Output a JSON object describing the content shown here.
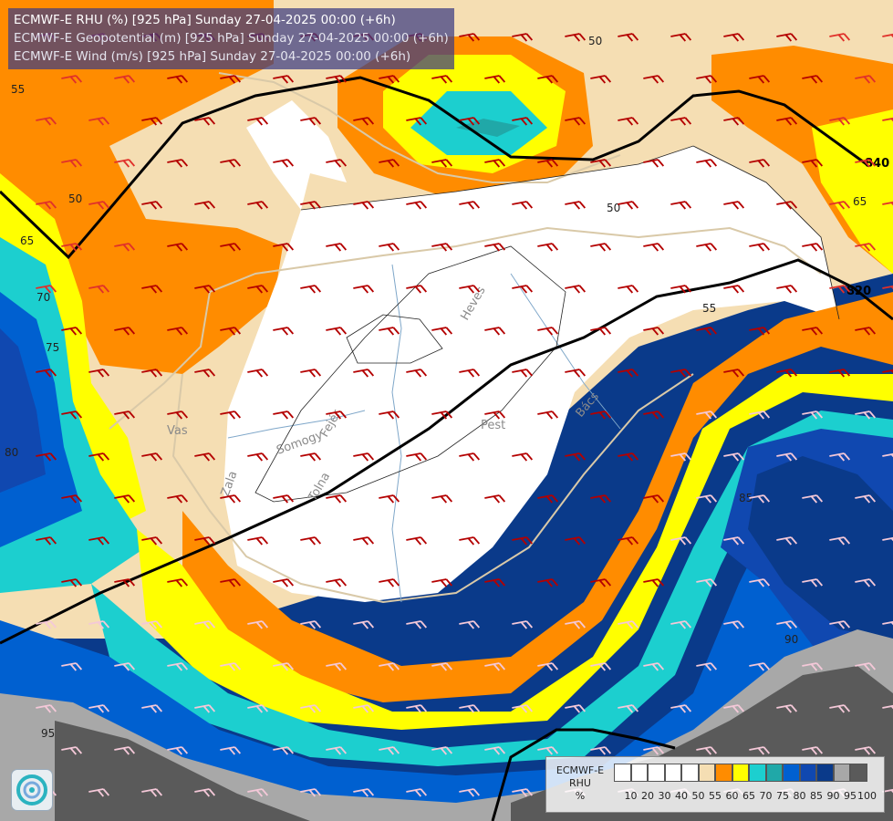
{
  "header": {
    "line1": "ECMWF-E RHU (%) [925 hPa] Sunday 27-04-2025 00:00 (+6h)",
    "line2": "ECMWF-E Geopotential (m) [925 hPa] Sunday 27-04-2025 00:00 (+6h)",
    "line3": "ECMWF-E Wind (m/s) [925 hPa] Sunday 27-04-2025 00:00 (+6h)"
  },
  "legend": {
    "model": "ECMWF-E",
    "variable": "RHU",
    "unit": "%",
    "levels": [
      "10",
      "20",
      "30",
      "40",
      "50",
      "55",
      "60",
      "65",
      "70",
      "75",
      "80",
      "85",
      "90",
      "95",
      "100"
    ],
    "colors": [
      "#ffffff",
      "#ffffff",
      "#ffffff",
      "#ffffff",
      "#ffffff",
      "#f5deb3",
      "#ff8c00",
      "#ffff00",
      "#1ccfcf",
      "#20a8a8",
      "#0060d0",
      "#1048b0",
      "#0a3a8a",
      "#a8a8a8",
      "#5a5a5a"
    ]
  },
  "map_labels": {
    "geopotential": [
      "840",
      "820"
    ],
    "rhu_contours": [
      "50",
      "55",
      "65",
      "70",
      "75",
      "80",
      "85",
      "90",
      "95"
    ],
    "regions": [
      "Vas",
      "Zala",
      "Somogy",
      "Tolna",
      "Fejér",
      "Pest",
      "Heves",
      "Bács"
    ]
  },
  "colors": {
    "title_bg": "#3c3c82",
    "isohypse": "#000000",
    "border": "#d9c9a8",
    "wind_barb": "#b40000"
  },
  "icons": [
    "logo-icon"
  ]
}
